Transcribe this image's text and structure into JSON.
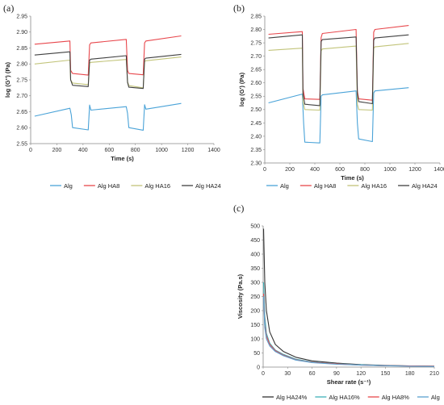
{
  "chart_data": [
    {
      "id": "a",
      "type": "line",
      "panel_label": "(a)",
      "xlabel": "Time (s)",
      "ylabel": "log (G'') (Pa)",
      "xlim": [
        0,
        1400
      ],
      "ylim": [
        2.55,
        2.95
      ],
      "xticks": [
        0,
        200,
        400,
        600,
        800,
        1000,
        1200,
        1400
      ],
      "yticks": [
        2.55,
        2.6,
        2.65,
        2.7,
        2.75,
        2.8,
        2.85,
        2.9,
        2.95
      ],
      "ytick_decimals": 2,
      "grid": false,
      "legend_position": "bottom",
      "series": [
        {
          "name": "Alg",
          "color": "#4aa3d8",
          "x": [
            30,
            300,
            310,
            320,
            440,
            450,
            460,
            730,
            740,
            750,
            860,
            870,
            880,
            1150
          ],
          "y": [
            2.636,
            2.661,
            2.64,
            2.6,
            2.593,
            2.671,
            2.655,
            2.666,
            2.645,
            2.6,
            2.592,
            2.672,
            2.658,
            2.676
          ]
        },
        {
          "name": "Alg HA8",
          "color": "#e8474c",
          "x": [
            30,
            300,
            305,
            320,
            440,
            450,
            460,
            730,
            740,
            750,
            860,
            870,
            880,
            1150
          ],
          "y": [
            2.862,
            2.872,
            2.78,
            2.77,
            2.765,
            2.86,
            2.866,
            2.877,
            2.78,
            2.77,
            2.766,
            2.866,
            2.872,
            2.888
          ]
        },
        {
          "name": "Alg HA16",
          "color": "#c2c47a",
          "x": [
            30,
            300,
            305,
            320,
            440,
            450,
            460,
            730,
            740,
            750,
            860,
            870,
            880,
            1150
          ],
          "y": [
            2.8,
            2.812,
            2.75,
            2.74,
            2.735,
            2.803,
            2.805,
            2.814,
            2.745,
            2.732,
            2.725,
            2.808,
            2.81,
            2.822
          ]
        },
        {
          "name": "Alg HA24",
          "color": "#404040",
          "x": [
            30,
            300,
            305,
            320,
            440,
            450,
            460,
            730,
            740,
            750,
            860,
            870,
            880,
            1150
          ],
          "y": [
            2.828,
            2.838,
            2.75,
            2.733,
            2.729,
            2.812,
            2.815,
            2.826,
            2.742,
            2.727,
            2.723,
            2.815,
            2.818,
            2.83
          ]
        }
      ]
    },
    {
      "id": "b",
      "type": "line",
      "panel_label": "(b)",
      "xlabel": "Time (s)",
      "ylabel": "log (G') (Pa)",
      "xlim": [
        0,
        1400
      ],
      "ylim": [
        2.3,
        2.85
      ],
      "xticks": [
        0,
        200,
        400,
        600,
        800,
        1000,
        1200,
        1400
      ],
      "yticks": [
        2.3,
        2.35,
        2.4,
        2.45,
        2.5,
        2.55,
        2.6,
        2.65,
        2.7,
        2.75,
        2.8,
        2.85
      ],
      "ytick_decimals": 2,
      "grid": false,
      "legend_position": "bottom",
      "series": [
        {
          "name": "Alg",
          "color": "#4aa3d8",
          "x": [
            30,
            300,
            310,
            320,
            440,
            450,
            460,
            730,
            740,
            750,
            860,
            870,
            880,
            1150
          ],
          "y": [
            2.525,
            2.558,
            2.45,
            2.378,
            2.375,
            2.55,
            2.555,
            2.57,
            2.45,
            2.39,
            2.38,
            2.562,
            2.57,
            2.582
          ]
        },
        {
          "name": "Alg HA8",
          "color": "#e8474c",
          "x": [
            30,
            300,
            305,
            320,
            440,
            450,
            460,
            730,
            740,
            750,
            860,
            870,
            880,
            1150
          ],
          "y": [
            2.782,
            2.792,
            2.58,
            2.54,
            2.538,
            2.77,
            2.785,
            2.8,
            2.57,
            2.54,
            2.535,
            2.79,
            2.8,
            2.815
          ]
        },
        {
          "name": "Alg HA16",
          "color": "#c2c47a",
          "x": [
            30,
            300,
            305,
            320,
            440,
            450,
            460,
            730,
            740,
            750,
            860,
            870,
            880,
            1150
          ],
          "y": [
            2.722,
            2.73,
            2.53,
            2.5,
            2.498,
            2.72,
            2.727,
            2.738,
            2.52,
            2.5,
            2.498,
            2.73,
            2.735,
            2.748
          ]
        },
        {
          "name": "Alg HA24",
          "color": "#404040",
          "x": [
            30,
            300,
            305,
            320,
            440,
            450,
            460,
            730,
            740,
            750,
            860,
            870,
            880,
            1150
          ],
          "y": [
            2.768,
            2.78,
            2.56,
            2.52,
            2.515,
            2.755,
            2.762,
            2.772,
            2.56,
            2.53,
            2.522,
            2.76,
            2.768,
            2.78
          ]
        }
      ]
    },
    {
      "id": "c",
      "type": "line",
      "panel_label": "(c)",
      "xlabel": "Shear rate (s⁻¹)",
      "ylabel": "Viscosity (Pa.s)",
      "xlim": [
        0,
        210
      ],
      "ylim": [
        0,
        500
      ],
      "xticks": [
        0,
        30,
        60,
        90,
        120,
        150,
        180,
        210
      ],
      "yticks": [
        0,
        50,
        100,
        150,
        200,
        250,
        300,
        350,
        400,
        450,
        500
      ],
      "ytick_decimals": 0,
      "grid": false,
      "legend_position": "bottom",
      "series": [
        {
          "name": "Alg HA24%",
          "color": "#333333",
          "x": [
            0.5,
            2,
            4,
            8,
            15,
            25,
            40,
            60,
            90,
            120,
            150,
            180,
            210
          ],
          "y": [
            490,
            300,
            200,
            125,
            80,
            55,
            35,
            22,
            14,
            9,
            6,
            4,
            3
          ]
        },
        {
          "name": "Alg HA16%",
          "color": "#3fb0b8",
          "x": [
            0.5,
            2,
            4,
            8,
            15,
            25,
            40,
            60,
            90,
            120,
            150,
            180,
            210
          ],
          "y": [
            300,
            180,
            120,
            85,
            60,
            45,
            28,
            18,
            12,
            8,
            5,
            4,
            3
          ]
        },
        {
          "name": "Alg HA8%",
          "color": "#e8474c",
          "x": [
            0.5,
            2,
            4,
            8,
            15,
            25,
            40,
            60,
            90,
            120,
            150,
            180,
            210
          ],
          "y": [
            260,
            150,
            110,
            80,
            58,
            42,
            26,
            17,
            11,
            7,
            5,
            4,
            3
          ]
        },
        {
          "name": "Alg",
          "color": "#5aa0d0",
          "x": [
            0.5,
            2,
            4,
            8,
            15,
            25,
            40,
            60,
            90,
            120,
            150,
            180,
            210
          ],
          "y": [
            250,
            140,
            100,
            75,
            55,
            40,
            25,
            16,
            10,
            7,
            5,
            3,
            2
          ]
        }
      ]
    }
  ]
}
